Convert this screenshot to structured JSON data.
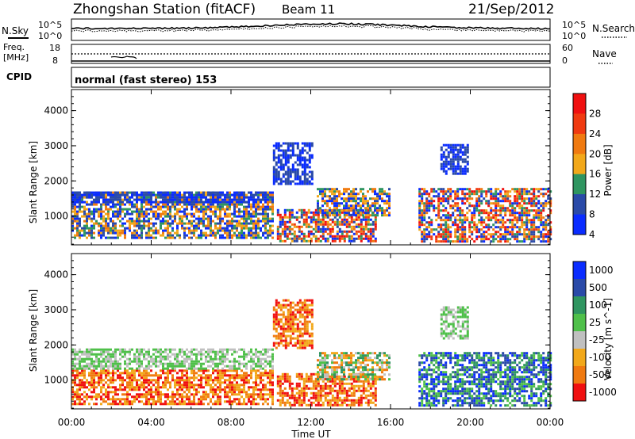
{
  "header": {
    "station": "Zhongshan Station (fitACF)",
    "beam": "Beam 11",
    "date": "21/Sep/2012"
  },
  "labels": {
    "nsky": "N.Sky",
    "nsearch": "N.Search",
    "freq": "Freq.",
    "freq_unit": "[MHz]",
    "nave": "Nave",
    "cpid": "CPID",
    "cpid_value": "normal (fast stereo) 153",
    "sky_ticks": [
      "10^5",
      "10^0"
    ],
    "freq_ticks": [
      "18",
      "8"
    ],
    "nave_ticks": [
      "60",
      "0"
    ],
    "time_label": "Time UT"
  },
  "colors": {
    "blue": "#0a2cff",
    "dark_blue": "#2a4aa8",
    "green": "#2f9560",
    "light_green": "#4fc04a",
    "grey": "#c0c0c0",
    "yellow": "#f2a81a",
    "orange": "#f07a10",
    "red": "#f01010"
  },
  "chart_data": [
    {
      "type": "heatmap",
      "panel": "power",
      "ylabel": "Slant Range [km]",
      "yticks": [
        "4000",
        "3000",
        "2000",
        "1000"
      ],
      "xticks": [
        "00:00",
        "04:00",
        "08:00",
        "12:00",
        "16:00",
        "20:00",
        "00:00"
      ],
      "xlabel": "Time UT",
      "colorbar_label": "Power [dB]",
      "colorbar_ticks": [
        "28",
        "24",
        "20",
        "16",
        "12",
        "8",
        "4"
      ],
      "colorbar_colors": [
        "#f01010",
        "#f03a10",
        "#f07a10",
        "#f2a81a",
        "#2f9560",
        "#2a4aa8",
        "#0a2cff"
      ],
      "ylim": [
        180,
        4600
      ],
      "xlim_hours": [
        0,
        24
      ],
      "echo_regions": [
        {
          "t0": 0.0,
          "t1": 10.1,
          "r0": 350,
          "r1": 1700,
          "level": "mixed"
        },
        {
          "t0": 0.0,
          "t1": 10.1,
          "r0": 1400,
          "r1": 1700,
          "level": "low"
        },
        {
          "t0": 10.1,
          "t1": 12.1,
          "r0": 1900,
          "r1": 3100,
          "level": "low"
        },
        {
          "t0": 10.3,
          "t1": 15.3,
          "r0": 300,
          "r1": 1200,
          "level": "high"
        },
        {
          "t0": 12.3,
          "t1": 15.9,
          "r0": 1000,
          "r1": 1800,
          "level": "mixed"
        },
        {
          "t0": 17.4,
          "t1": 24.0,
          "r0": 300,
          "r1": 1800,
          "level": "high"
        },
        {
          "t0": 18.5,
          "t1": 19.9,
          "r0": 2200,
          "r1": 3050,
          "level": "low"
        }
      ]
    },
    {
      "type": "heatmap",
      "panel": "velocity",
      "ylabel": "Slant Range [km]",
      "yticks": [
        "4000",
        "3000",
        "2000",
        "1000"
      ],
      "xticks": [
        "00:00",
        "04:00",
        "08:00",
        "12:00",
        "16:00",
        "20:00",
        "00:00"
      ],
      "xlabel": "Time UT",
      "colorbar_label": "Velocity [m s^-1]",
      "colorbar_ticks": [
        "1000",
        "500",
        "100",
        "25",
        "-25",
        "-100",
        "-500",
        "-1000"
      ],
      "colorbar_colors": [
        "#0a2cff",
        "#2a4aa8",
        "#2f9560",
        "#4fc04a",
        "#c0c0c0",
        "#f2a81a",
        "#f07a10",
        "#f01010"
      ],
      "ylim": [
        180,
        4600
      ],
      "xlim_hours": [
        0,
        24
      ],
      "echo_regions": [
        {
          "t0": 0.0,
          "t1": 10.1,
          "r0": 350,
          "r1": 1300,
          "level": "negative"
        },
        {
          "t0": 0.0,
          "t1": 10.1,
          "r0": 1300,
          "r1": 1900,
          "level": "near-zero"
        },
        {
          "t0": 10.1,
          "t1": 12.1,
          "r0": 1900,
          "r1": 3300,
          "level": "negative"
        },
        {
          "t0": 10.3,
          "t1": 15.3,
          "r0": 300,
          "r1": 1200,
          "level": "negative"
        },
        {
          "t0": 12.3,
          "t1": 15.9,
          "r0": 1000,
          "r1": 1800,
          "level": "mixed"
        },
        {
          "t0": 17.4,
          "t1": 24.0,
          "r0": 300,
          "r1": 1800,
          "level": "positive"
        },
        {
          "t0": 18.5,
          "t1": 19.9,
          "r0": 2200,
          "r1": 3100,
          "level": "near-zero"
        }
      ]
    }
  ]
}
